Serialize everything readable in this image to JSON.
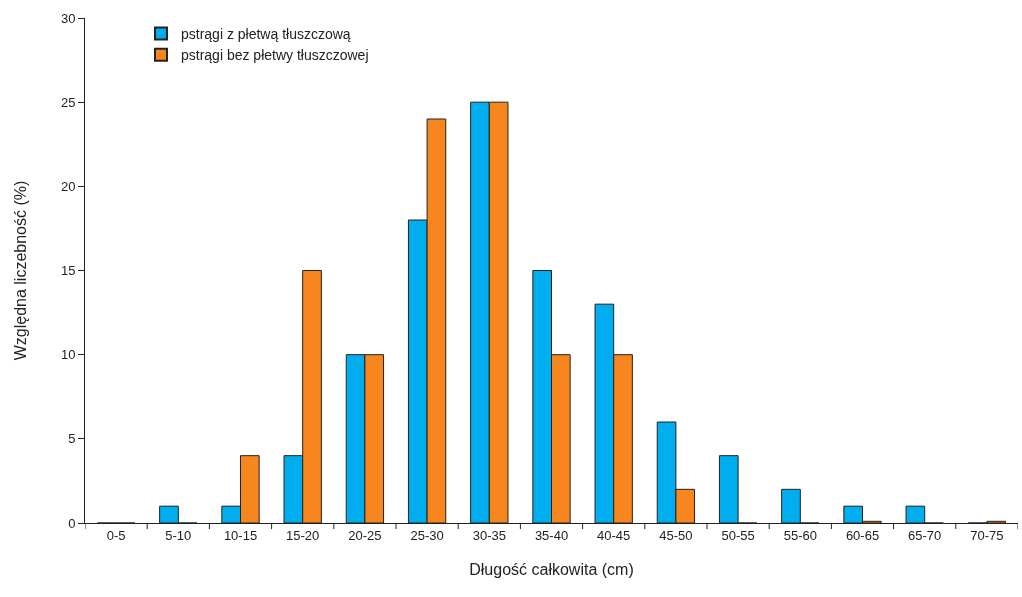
{
  "chart_data": {
    "type": "bar",
    "xlabel": "Długość całkowita (cm)",
    "ylabel": "Względna liczebność (%)",
    "categories": [
      "0-5",
      "5-10",
      "10-15",
      "15-20",
      "20-25",
      "25-30",
      "30-35",
      "35-40",
      "40-45",
      "45-50",
      "50-55",
      "55-60",
      "60-65",
      "65-70",
      "70-75"
    ],
    "series": [
      {
        "name": "pstrągi z płetwą tłuszczową",
        "color": "#00aeef",
        "values": [
          0,
          1,
          1,
          4,
          10,
          18,
          25,
          15,
          13,
          6,
          4,
          2,
          1,
          1,
          0
        ]
      },
      {
        "name": "pstrągi bez płetwy tłuszczowej",
        "color": "#f7861f",
        "values": [
          0,
          0,
          4,
          15,
          10,
          24,
          25,
          10,
          10,
          2,
          0,
          0,
          0.1,
          0,
          0.1
        ]
      }
    ],
    "ylim": [
      0,
      30
    ],
    "yticks": [
      0,
      5,
      10,
      15,
      20,
      25,
      30
    ],
    "grid": false,
    "legend": "top left"
  }
}
